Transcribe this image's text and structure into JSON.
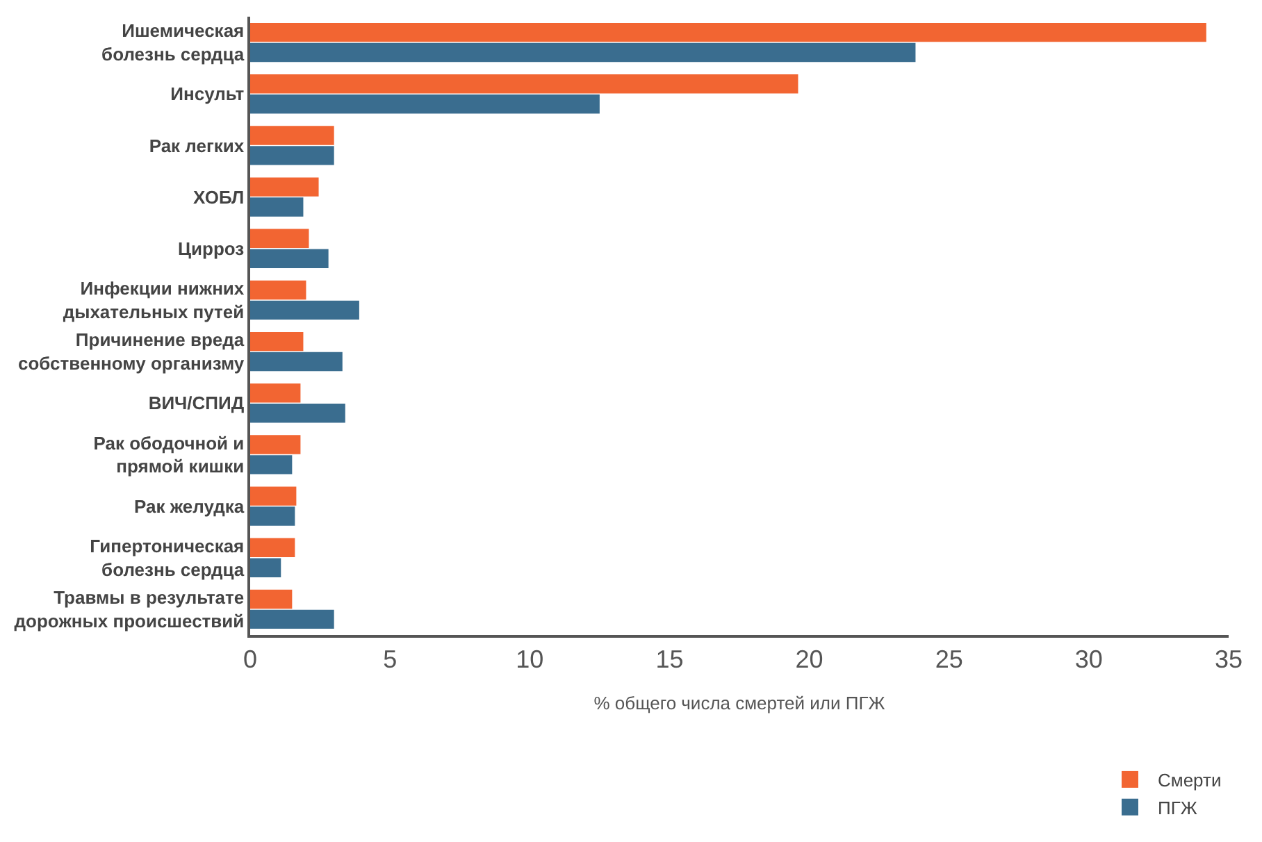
{
  "chart_data": {
    "type": "bar",
    "orientation": "horizontal",
    "xlabel": "% общего числа смертей или ПГЖ",
    "categories": [
      "Ишемическая\nболезнь сердца",
      "Инсульт",
      "Рак легких",
      "ХОБЛ",
      "Цирроз",
      "Инфекции нижних\nдыхательных путей",
      "Причинение вреда\nсобственному организму",
      "ВИЧ/СПИД",
      "Рак ободочной и\nпрямой кишки",
      "Рак желудка",
      "Гипертоническая\nболезнь сердца",
      "Травмы в результате\nдорожных происшествий"
    ],
    "series": [
      {
        "name": "Смерти",
        "color": "#f26532",
        "values": [
          34.2,
          19.6,
          3.0,
          2.45,
          2.1,
          2.0,
          1.9,
          1.8,
          1.8,
          1.65,
          1.6,
          1.5
        ]
      },
      {
        "name": "ПГЖ",
        "color": "#3a6d8f",
        "values": [
          23.8,
          12.5,
          3.0,
          1.9,
          2.8,
          3.9,
          3.3,
          3.4,
          1.5,
          1.6,
          1.1,
          3.0
        ]
      }
    ],
    "xlim": [
      0,
      35
    ],
    "xticks": [
      0,
      5,
      10,
      15,
      20,
      25,
      30,
      35
    ],
    "legend": "bottom right"
  }
}
